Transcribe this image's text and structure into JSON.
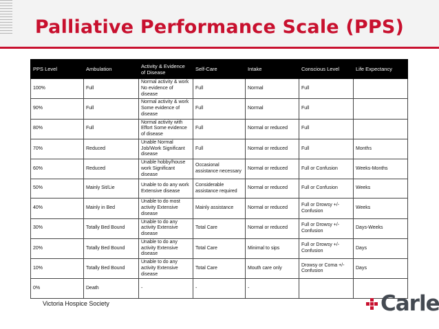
{
  "title": "Palliative Performance Scale (PPS)",
  "table": {
    "headers": [
      "PPS Level",
      "Ambulation",
      "Activity & Evidence of Disease",
      "Self-Care",
      "Intake",
      "Conscious Level",
      "Life Expectancy"
    ],
    "rows": [
      [
        "100%",
        "Full",
        "Normal activity & work No evidence of disease",
        "Full",
        "Normal",
        "Full",
        ""
      ],
      [
        "90%",
        "Full",
        "Normal activity & work Some evidence of disease",
        "Full",
        "Normal",
        "Full",
        ""
      ],
      [
        "80%",
        "Full",
        "Normal activity with Effort Some evidence of disease",
        "Full",
        "Normal or reduced",
        "Full",
        ""
      ],
      [
        "70%",
        "Reduced",
        "Unable Normal Job/Work Significant disease",
        "Full",
        "Normal or reduced",
        "Full",
        "Months"
      ],
      [
        "60%",
        "Reduced",
        "Unable hobby/house work Significant disease",
        "Occasional assistance necessary",
        "Normal or reduced",
        "Full  or  Confusion",
        "Weeks-Months"
      ],
      [
        "50%",
        "Mainly Sit/Lie",
        "Unable to do any work Extensive disease",
        "Considerable assistance required",
        "Normal or reduced",
        "Full  or  Confusion",
        "Weeks"
      ],
      [
        "40%",
        "Mainly in Bed",
        "Unable to do most activity Extensive disease",
        "Mainly assistance",
        "Normal or reduced",
        "Full or Drowsy +/- Confusion",
        "Weeks"
      ],
      [
        "30%",
        "Totally Bed Bound",
        "Unable to do any activity Extensive disease",
        "Total Care",
        "Normal or reduced",
        "Full or Drowsy +/- Confusion",
        "Days-Weeks"
      ],
      [
        "20%",
        "Totally Bed Bound",
        "Unable to do any activity Extensive disease",
        "Total Care",
        "Minimal to sips",
        "Full or Drowsy +/- Confusion",
        "Days"
      ],
      [
        "10%",
        "Totally Bed Bound",
        "Unable to do any activity Extensive disease",
        "Total Care",
        "Mouth care only",
        "Drowsy or Coma +/- Confusion",
        "Days"
      ],
      [
        "0%",
        "Death",
        "-",
        "-",
        "-",
        "",
        ""
      ]
    ]
  },
  "footer": {
    "credit": "Victoria Hospice Society",
    "logo_text": "Carle"
  },
  "colors": {
    "accent": "#c8102e",
    "header_bg": "#000000",
    "logo_gray": "#444a52"
  }
}
